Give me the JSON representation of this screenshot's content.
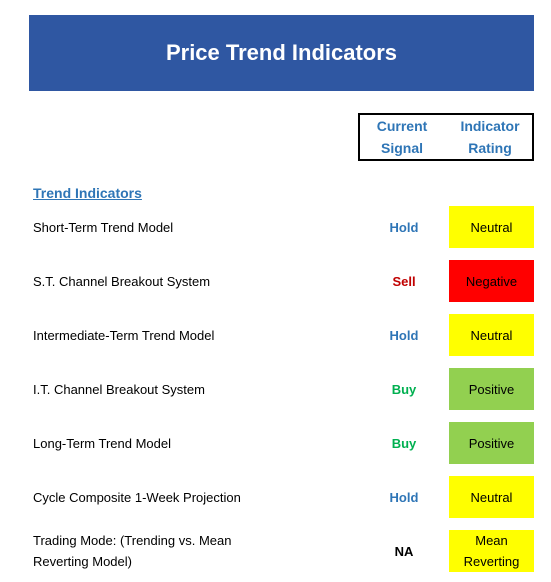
{
  "header": {
    "title": "Price Trend Indicators",
    "color": "#2f57a2"
  },
  "columns": [
    "Current Signal",
    "Indicator Rating"
  ],
  "section": "Trend Indicators",
  "rows": [
    {
      "name": "Short-Term Trend Model",
      "signal": "Hold",
      "signal_color": "#2e75b6",
      "rating": "Neutral",
      "rating_color": "#ffff00"
    },
    {
      "name": "S.T. Channel Breakout System",
      "signal": "Sell",
      "signal_color": "#c00000",
      "rating": "Negative",
      "rating_color": "#ff0000"
    },
    {
      "name": "Intermediate-Term Trend Model",
      "signal": "Hold",
      "signal_color": "#2e75b6",
      "rating": "Neutral",
      "rating_color": "#ffff00"
    },
    {
      "name": "I.T. Channel Breakout System",
      "signal": "Buy",
      "signal_color": "#00b050",
      "rating": "Positive",
      "rating_color": "#92d050"
    },
    {
      "name": "Long-Term Trend Model",
      "signal": "Buy",
      "signal_color": "#00b050",
      "rating": "Positive",
      "rating_color": "#92d050"
    },
    {
      "name": "Cycle Composite 1-Week Projection",
      "signal": "Hold",
      "signal_color": "#2e75b6",
      "rating": "Neutral",
      "rating_color": "#ffff00"
    },
    {
      "name": "Trading Mode: (Trending vs. Mean Reverting Model)",
      "signal": "NA",
      "signal_color": "#000000",
      "rating": "Mean Reverting",
      "rating_color": "#ffff00"
    }
  ]
}
